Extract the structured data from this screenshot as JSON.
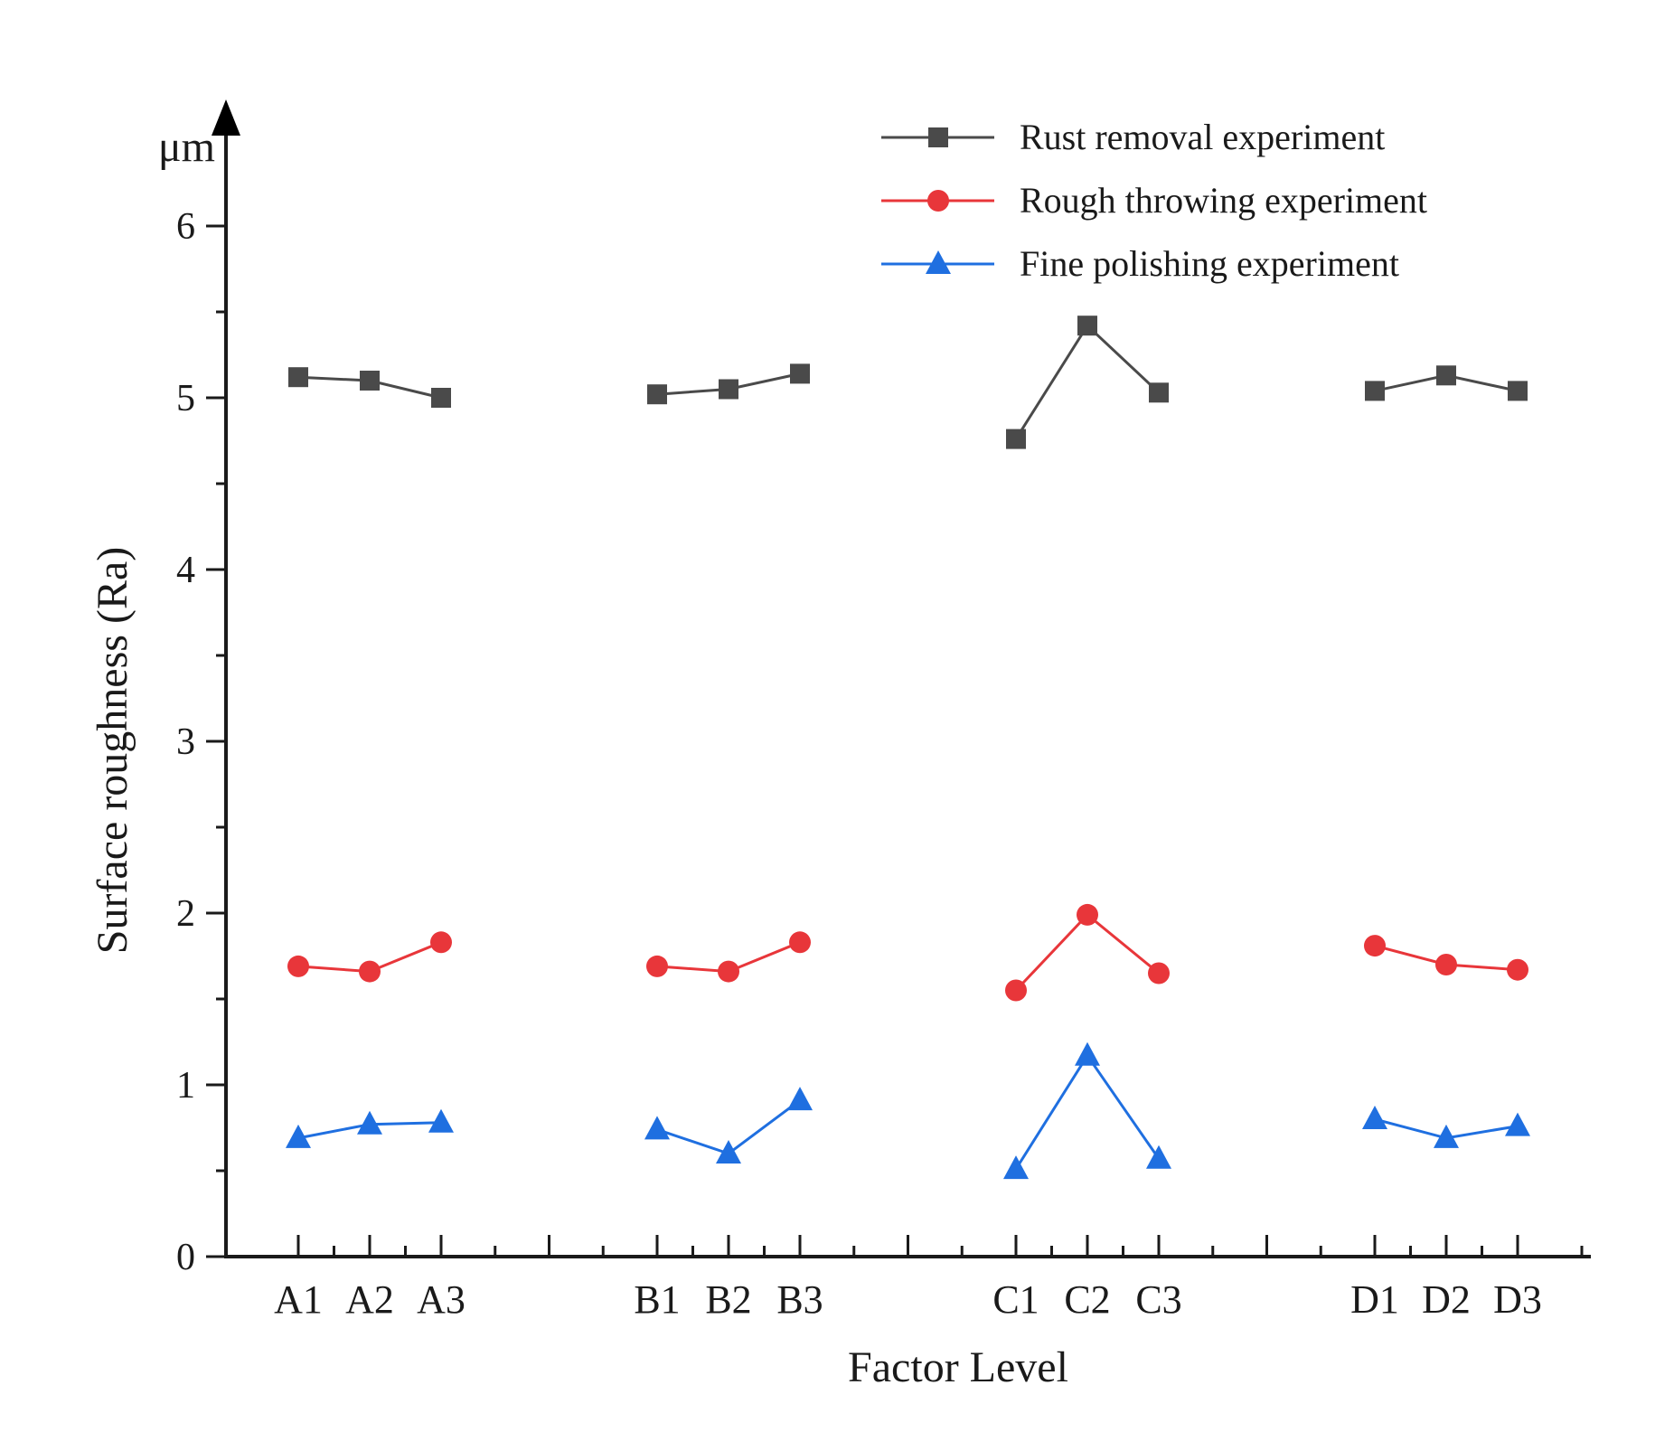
{
  "chart_data": {
    "type": "line",
    "title": "",
    "xlabel": "Factor Level",
    "ylabel": "Surface roughness (Ra)",
    "yunit": "μm",
    "ylim": [
      0,
      6.5
    ],
    "yticks": [
      0,
      1,
      2,
      3,
      4,
      5,
      6
    ],
    "grid": false,
    "legend_position": "top-right",
    "groups": [
      {
        "name": "A",
        "categories": [
          "A1",
          "A2",
          "A3"
        ]
      },
      {
        "name": "B",
        "categories": [
          "B1",
          "B2",
          "B3"
        ]
      },
      {
        "name": "C",
        "categories": [
          "C1",
          "C2",
          "C3"
        ]
      },
      {
        "name": "D",
        "categories": [
          "D1",
          "D2",
          "D3"
        ]
      }
    ],
    "series": [
      {
        "name": "Rust removal experiment",
        "color": "#4a4a4a",
        "marker": "square",
        "values": [
          5.12,
          5.1,
          5.0,
          5.02,
          5.05,
          5.14,
          4.76,
          5.42,
          5.03,
          5.04,
          5.13,
          5.04
        ]
      },
      {
        "name": "Rough throwing experiment",
        "color": "#e8363a",
        "marker": "circle",
        "values": [
          1.69,
          1.66,
          1.83,
          1.69,
          1.66,
          1.83,
          1.55,
          1.99,
          1.65,
          1.81,
          1.7,
          1.67
        ]
      },
      {
        "name": "Fine polishing experiment",
        "color": "#1f6fe0",
        "marker": "triangle",
        "values": [
          0.69,
          0.77,
          0.78,
          0.74,
          0.6,
          0.91,
          0.51,
          1.17,
          0.57,
          0.8,
          0.69,
          0.76
        ]
      }
    ]
  }
}
